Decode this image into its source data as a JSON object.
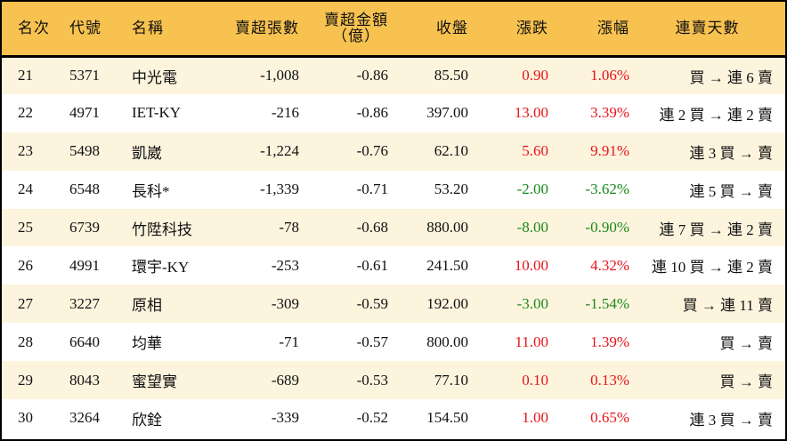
{
  "table": {
    "headers": {
      "rank": "名次",
      "code": "代號",
      "name": "名稱",
      "sell_lots": "賣超張數",
      "sell_amount_line1": "賣超金額",
      "sell_amount_line2": "（億）",
      "close": "收盤",
      "change": "漲跌",
      "change_pct": "漲幅",
      "streak": "連賣天數"
    },
    "colors": {
      "header_bg": "#f8c250",
      "row_alt_bg": "#fdf4de",
      "up": "#e8141a",
      "down": "#1a8a1a"
    },
    "rows": [
      {
        "rank": "21",
        "code": "5371",
        "name": "中光電",
        "sell_lots": "-1,008",
        "sell_amount": "-0.86",
        "close": "85.50",
        "change": "0.90",
        "change_pct": "1.06%",
        "direction": "up",
        "streak": "買 → 連 6 賣"
      },
      {
        "rank": "22",
        "code": "4971",
        "name": "IET-KY",
        "sell_lots": "-216",
        "sell_amount": "-0.86",
        "close": "397.00",
        "change": "13.00",
        "change_pct": "3.39%",
        "direction": "up",
        "streak": "連 2 買 → 連 2 賣"
      },
      {
        "rank": "23",
        "code": "5498",
        "name": "凱崴",
        "sell_lots": "-1,224",
        "sell_amount": "-0.76",
        "close": "62.10",
        "change": "5.60",
        "change_pct": "9.91%",
        "direction": "up",
        "streak": "連 3 買 → 賣"
      },
      {
        "rank": "24",
        "code": "6548",
        "name": "長科*",
        "sell_lots": "-1,339",
        "sell_amount": "-0.71",
        "close": "53.20",
        "change": "-2.00",
        "change_pct": "-3.62%",
        "direction": "down",
        "streak": "連 5 買 → 賣"
      },
      {
        "rank": "25",
        "code": "6739",
        "name": "竹陞科技",
        "sell_lots": "-78",
        "sell_amount": "-0.68",
        "close": "880.00",
        "change": "-8.00",
        "change_pct": "-0.90%",
        "direction": "down",
        "streak": "連 7 買 → 連 2 賣"
      },
      {
        "rank": "26",
        "code": "4991",
        "name": "環宇-KY",
        "sell_lots": "-253",
        "sell_amount": "-0.61",
        "close": "241.50",
        "change": "10.00",
        "change_pct": "4.32%",
        "direction": "up",
        "streak": "連 10 買 → 連 2 賣"
      },
      {
        "rank": "27",
        "code": "3227",
        "name": "原相",
        "sell_lots": "-309",
        "sell_amount": "-0.59",
        "close": "192.00",
        "change": "-3.00",
        "change_pct": "-1.54%",
        "direction": "down",
        "streak": "買 → 連 11 賣"
      },
      {
        "rank": "28",
        "code": "6640",
        "name": "均華",
        "sell_lots": "-71",
        "sell_amount": "-0.57",
        "close": "800.00",
        "change": "11.00",
        "change_pct": "1.39%",
        "direction": "up",
        "streak": "買 → 賣"
      },
      {
        "rank": "29",
        "code": "8043",
        "name": "蜜望實",
        "sell_lots": "-689",
        "sell_amount": "-0.53",
        "close": "77.10",
        "change": "0.10",
        "change_pct": "0.13%",
        "direction": "up",
        "streak": "買 → 賣"
      },
      {
        "rank": "30",
        "code": "3264",
        "name": "欣銓",
        "sell_lots": "-339",
        "sell_amount": "-0.52",
        "close": "154.50",
        "change": "1.00",
        "change_pct": "0.65%",
        "direction": "up",
        "streak": "連 3 買 → 賣"
      }
    ]
  }
}
